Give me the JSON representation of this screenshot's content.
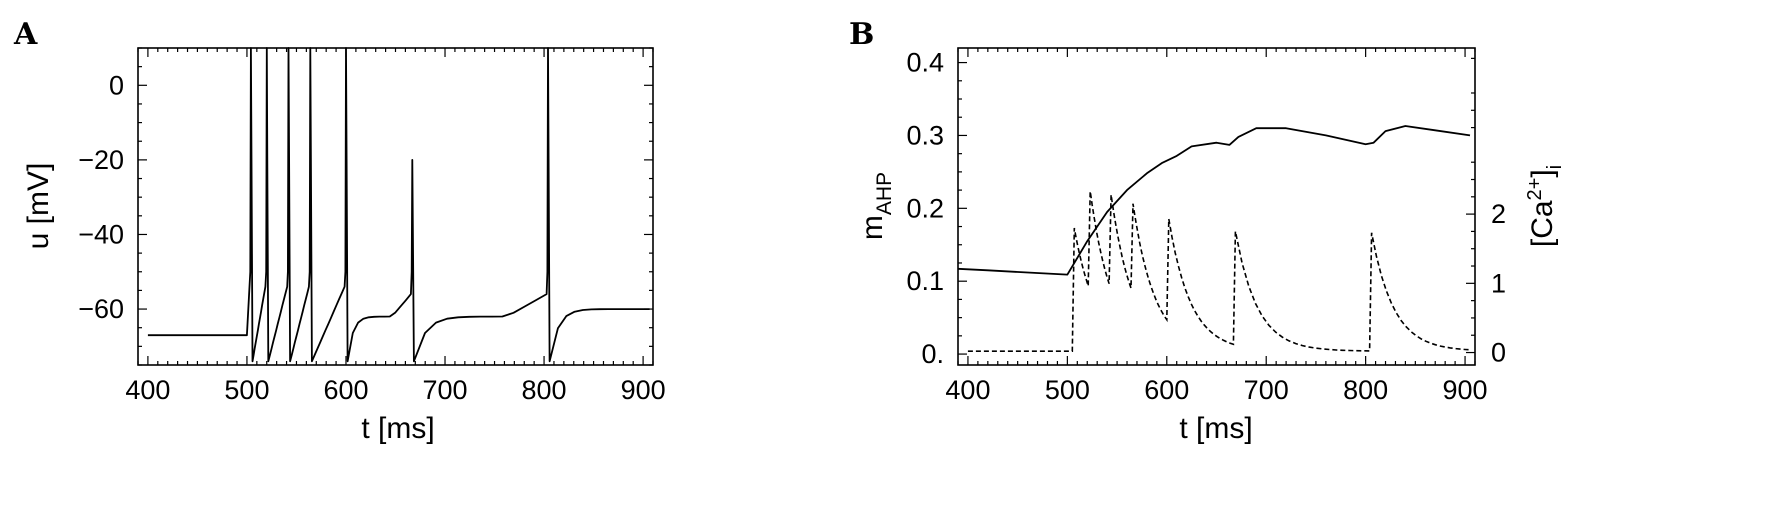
{
  "chart_data": [
    {
      "panel": "A",
      "type": "line",
      "xlabel": "t  [ms]",
      "ylabel": "u  [mV]",
      "xlim": [
        390,
        910
      ],
      "ylim": [
        -75,
        10
      ],
      "x_ticks": [
        400,
        500,
        600,
        700,
        800,
        900
      ],
      "x_tick_labels": [
        "400",
        "500",
        "600",
        "700",
        "800",
        "900"
      ],
      "y_ticks": [
        0,
        -20,
        -40,
        -60
      ],
      "y_tick_labels": [
        "0",
        "−20",
        "−40",
        "−60"
      ],
      "rest_potential": -67,
      "stimulus_onset": 500,
      "spike_times": [
        504,
        520,
        542,
        564,
        600,
        667,
        804
      ],
      "spike_peaks": [
        10,
        10,
        10,
        10,
        10,
        -20,
        10
      ],
      "after_hyperpolarization": -74,
      "late_baseline": -60
    },
    {
      "panel": "B",
      "type": "line",
      "xlabel": "t  [ms]",
      "ylabel_left": "m",
      "ylabel_left_sub": "AHP",
      "ylabel_right": "[Ca",
      "ylabel_right_sup": "2+",
      "ylabel_right_end": "]",
      "ylabel_right_sub": "i",
      "xlim": [
        390,
        910
      ],
      "ylim_left": [
        -0.015,
        0.42
      ],
      "ylim_right": [
        -0.18,
        4.4
      ],
      "x_ticks": [
        400,
        500,
        600,
        700,
        800,
        900
      ],
      "x_tick_labels": [
        "400",
        "500",
        "600",
        "700",
        "800",
        "900"
      ],
      "y_ticks_left": [
        0.0,
        0.1,
        0.2,
        0.3,
        0.4
      ],
      "y_tick_labels_left": [
        "0.",
        "0.1",
        "0.2",
        "0.3",
        "0.4"
      ],
      "y_ticks_right": [
        0,
        1,
        2
      ],
      "y_tick_labels_right": [
        "0",
        "1",
        "2"
      ],
      "series": [
        {
          "style": "solid",
          "x": [
            390,
            420,
            460,
            500,
            520,
            540,
            560,
            580,
            595,
            610,
            625,
            650,
            663,
            672,
            690,
            720,
            760,
            800,
            808,
            820,
            840,
            870,
            905
          ],
          "y": [
            0.117,
            0.115,
            0.112,
            0.109,
            0.155,
            0.195,
            0.225,
            0.248,
            0.262,
            0.272,
            0.285,
            0.29,
            0.287,
            0.298,
            0.31,
            0.31,
            0.3,
            0.288,
            0.29,
            0.306,
            0.313,
            0.307,
            0.3
          ]
        },
        {
          "style": "dashed",
          "baseline": 0.02,
          "spike_times": [
            505,
            521,
            542,
            564,
            600,
            667,
            804
          ],
          "peak_values": [
            1.8,
            2.33,
            2.28,
            2.15,
            1.93,
            1.75,
            1.73
          ],
          "decay_tau": 22
        }
      ]
    }
  ]
}
